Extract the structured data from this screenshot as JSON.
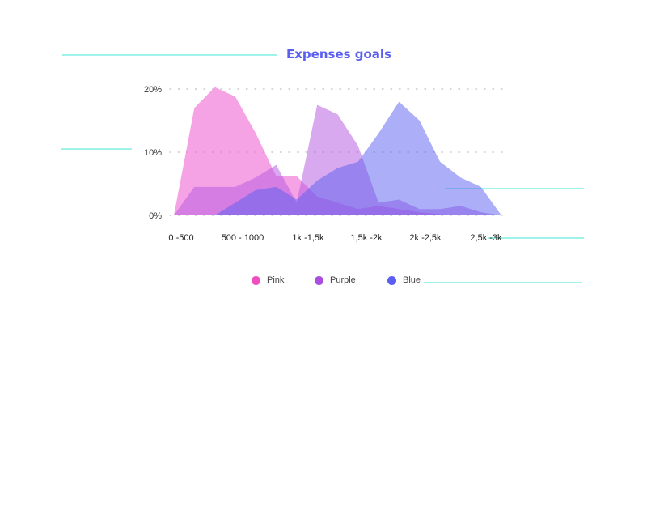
{
  "chart_data": {
    "type": "area",
    "title": "Expenses goals",
    "xlabel": "",
    "ylabel": "",
    "ylim": [
      0,
      20
    ],
    "yticks": [
      "0%",
      "10%",
      "20%"
    ],
    "ytick_values": [
      0,
      10,
      20
    ],
    "grid": "dotted horizontal",
    "legend_position": "bottom",
    "x_tick_labels": [
      "0 -500",
      "500 - 1000",
      "1k -1,5k",
      "1,5k -2k",
      "2k -2,5k",
      "2,5k -3k"
    ],
    "x": [
      0,
      0.35,
      0.7,
      1.05,
      1.4,
      1.75,
      2.1,
      2.45,
      2.8,
      3.15,
      3.5,
      3.85,
      4.2,
      4.55,
      4.9,
      5.25,
      5.6
    ],
    "series": [
      {
        "name": "Pink",
        "color": "#f06ad6",
        "values": [
          0,
          17,
          20.3,
          18.8,
          13,
          6.2,
          6.2,
          3,
          2,
          1,
          1.5,
          1,
          0.5,
          0.2,
          0,
          0,
          0
        ]
      },
      {
        "name": "Purple",
        "color": "#b65be0",
        "values": [
          0,
          4.5,
          4.5,
          4.5,
          6,
          8,
          2,
          17.5,
          16,
          11,
          2,
          2.5,
          1,
          1,
          1.5,
          0.5,
          0
        ]
      },
      {
        "name": "Blue",
        "color": "#5a5ff0",
        "values": [
          0,
          0,
          0,
          2,
          4,
          4.5,
          2.5,
          5.5,
          7.5,
          8.5,
          13,
          18,
          15,
          8.5,
          6,
          4.5,
          0
        ]
      }
    ]
  },
  "legend": {
    "pink": "Pink",
    "purple": "Purple",
    "blue": "Blue"
  },
  "colors": {
    "title": "#5a5ff0",
    "guide_lines": "#9ff3ea"
  }
}
